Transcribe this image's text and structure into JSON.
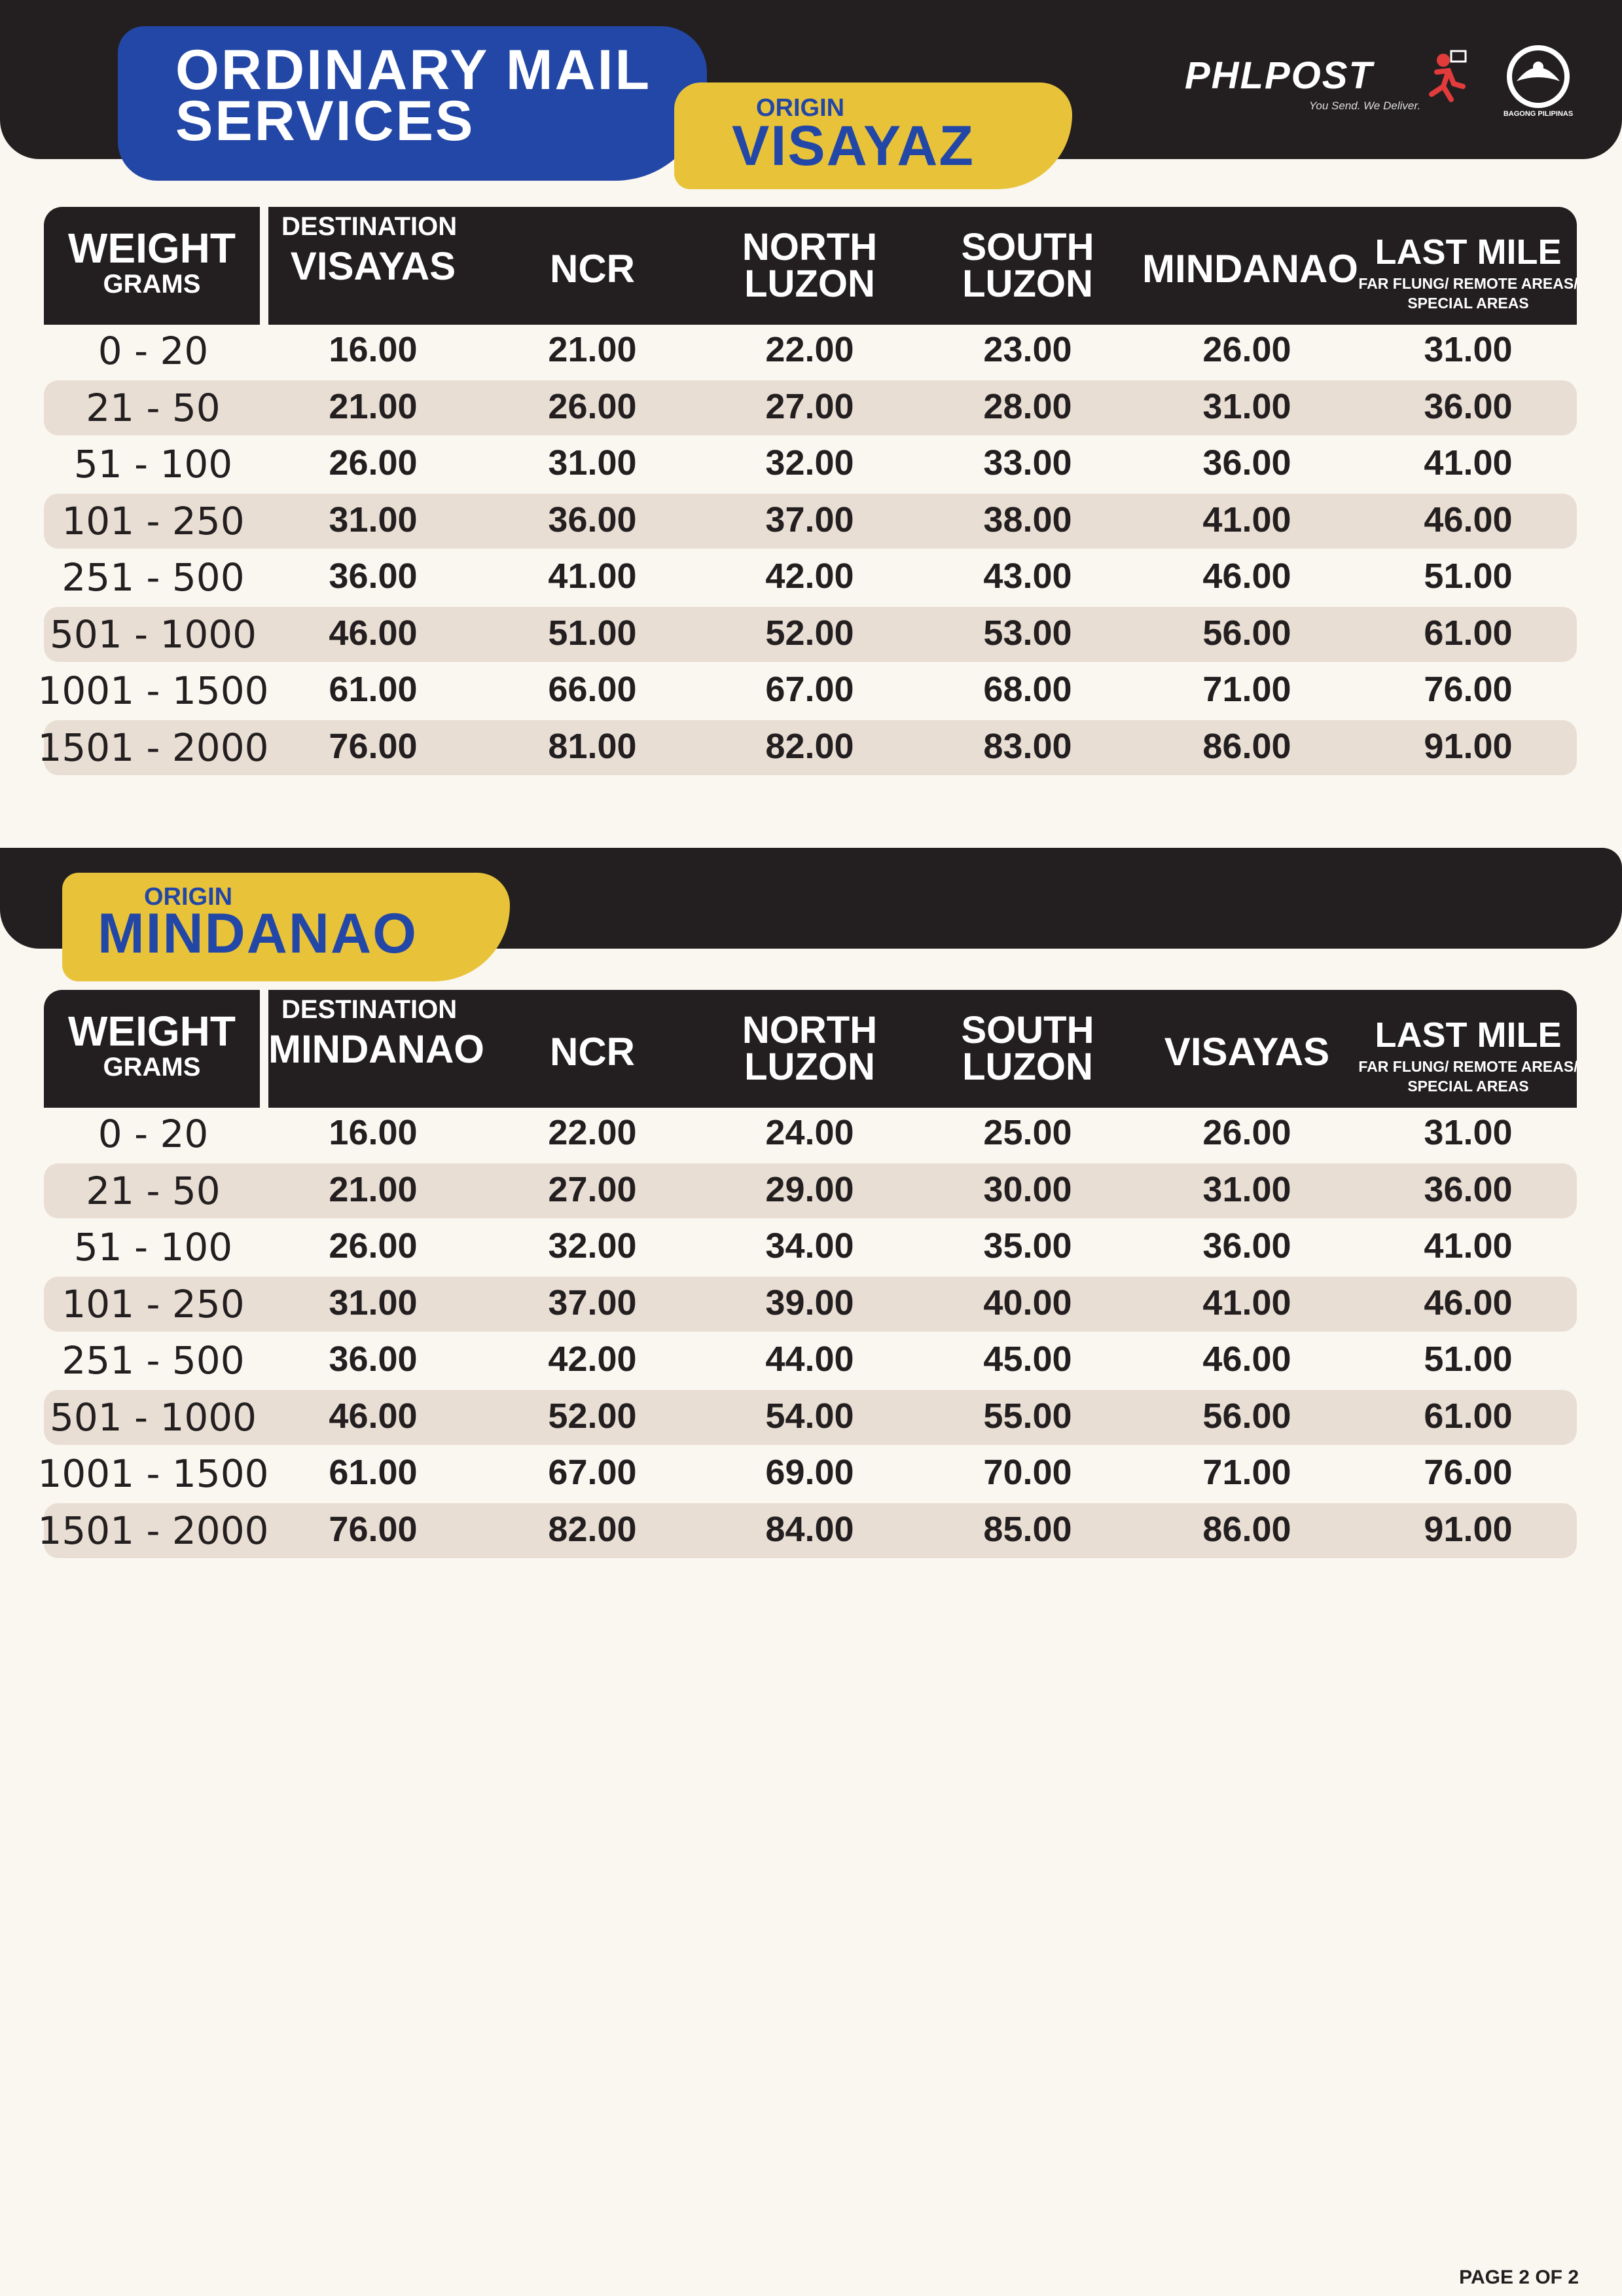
{
  "title": {
    "line1": "ORDINARY MAIL",
    "line2": "SERVICES"
  },
  "brand": {
    "name": "PHLPOST",
    "tagline": "You Send. We Deliver.",
    "seal_text": "BAGONG PILIPINAS"
  },
  "tables": [
    {
      "origin_label": "ORIGIN",
      "origin": "VISAYAZ",
      "weight_header": "WEIGHT",
      "weight_sub": "GRAMS",
      "destination_label": "DESTINATION",
      "columns": [
        "VISAYAS",
        "NCR",
        "NORTH LUZON",
        "SOUTH LUZON",
        "MINDANAO",
        "LAST MILE"
      ],
      "last_mile_sub": "FAR FLUNG/ REMOTE AREAS/ SPECIAL AREAS",
      "rows": [
        {
          "w": "0 - 20",
          "v": [
            "16.00",
            "21.00",
            "22.00",
            "23.00",
            "26.00",
            "31.00"
          ]
        },
        {
          "w": "21 - 50",
          "v": [
            "21.00",
            "26.00",
            "27.00",
            "28.00",
            "31.00",
            "36.00"
          ]
        },
        {
          "w": "51 - 100",
          "v": [
            "26.00",
            "31.00",
            "32.00",
            "33.00",
            "36.00",
            "41.00"
          ]
        },
        {
          "w": "101 - 250",
          "v": [
            "31.00",
            "36.00",
            "37.00",
            "38.00",
            "41.00",
            "46.00"
          ]
        },
        {
          "w": "251 - 500",
          "v": [
            "36.00",
            "41.00",
            "42.00",
            "43.00",
            "46.00",
            "51.00"
          ]
        },
        {
          "w": "501 - 1000",
          "v": [
            "46.00",
            "51.00",
            "52.00",
            "53.00",
            "56.00",
            "61.00"
          ]
        },
        {
          "w": "1001 - 1500",
          "v": [
            "61.00",
            "66.00",
            "67.00",
            "68.00",
            "71.00",
            "76.00"
          ]
        },
        {
          "w": "1501 - 2000",
          "v": [
            "76.00",
            "81.00",
            "82.00",
            "83.00",
            "86.00",
            "91.00"
          ]
        }
      ]
    },
    {
      "origin_label": "ORIGIN",
      "origin": "MINDANAO",
      "weight_header": "WEIGHT",
      "weight_sub": "GRAMS",
      "destination_label": "DESTINATION",
      "columns": [
        "MINDANAO",
        "NCR",
        "NORTH LUZON",
        "SOUTH LUZON",
        "VISAYAS",
        "LAST MILE"
      ],
      "last_mile_sub": "FAR FLUNG/ REMOTE AREAS/ SPECIAL AREAS",
      "rows": [
        {
          "w": "0 - 20",
          "v": [
            "16.00",
            "22.00",
            "24.00",
            "25.00",
            "26.00",
            "31.00"
          ]
        },
        {
          "w": "21 - 50",
          "v": [
            "21.00",
            "27.00",
            "29.00",
            "30.00",
            "31.00",
            "36.00"
          ]
        },
        {
          "w": "51 - 100",
          "v": [
            "26.00",
            "32.00",
            "34.00",
            "35.00",
            "36.00",
            "41.00"
          ]
        },
        {
          "w": "101 - 250",
          "v": [
            "31.00",
            "37.00",
            "39.00",
            "40.00",
            "41.00",
            "46.00"
          ]
        },
        {
          "w": "251 - 500",
          "v": [
            "36.00",
            "42.00",
            "44.00",
            "45.00",
            "46.00",
            "51.00"
          ]
        },
        {
          "w": "501 - 1000",
          "v": [
            "46.00",
            "52.00",
            "54.00",
            "55.00",
            "56.00",
            "61.00"
          ]
        },
        {
          "w": "1001 - 1500",
          "v": [
            "61.00",
            "67.00",
            "69.00",
            "70.00",
            "71.00",
            "76.00"
          ]
        },
        {
          "w": "1501 - 2000",
          "v": [
            "76.00",
            "82.00",
            "84.00",
            "85.00",
            "86.00",
            "91.00"
          ]
        }
      ]
    }
  ],
  "page_label": "PAGE 2 OF 2"
}
